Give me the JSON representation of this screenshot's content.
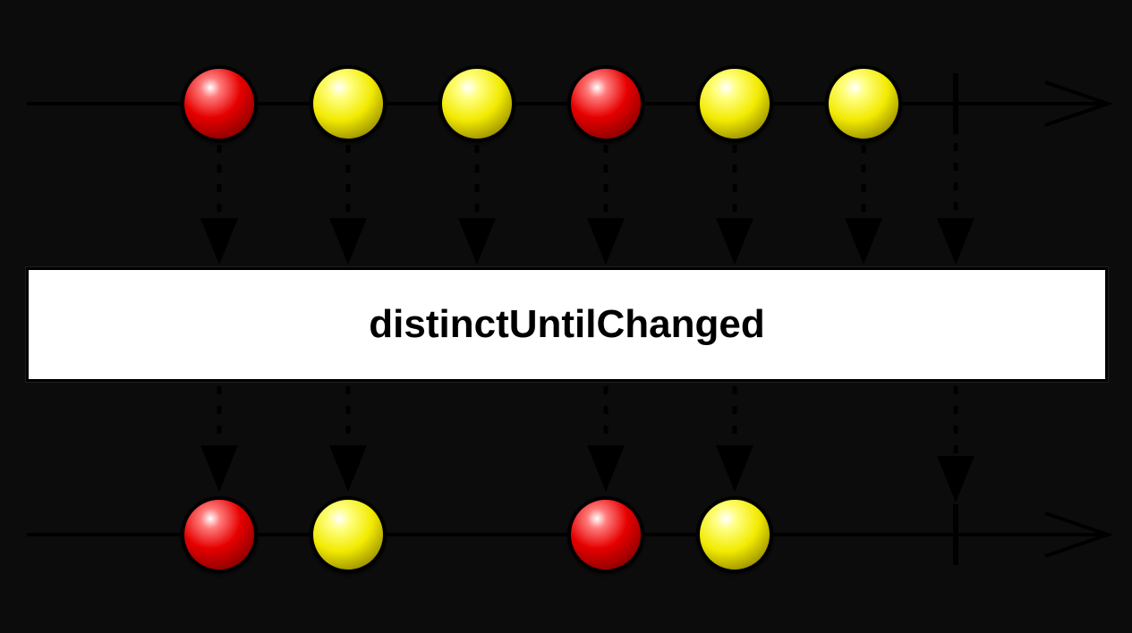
{
  "operator": {
    "label": "distinctUntilChanged"
  },
  "colors": {
    "background": "#0c0c0c",
    "line": "#000000",
    "red_marble": "#e00000",
    "yellow_marble": "#f0e800",
    "box": "#ffffff"
  },
  "input_stream": {
    "marbles": [
      "red",
      "yellow",
      "yellow",
      "red",
      "yellow",
      "yellow"
    ],
    "completes": true
  },
  "output_stream": {
    "marbles": [
      {
        "color": "red",
        "source_index": 0
      },
      {
        "color": "yellow",
        "source_index": 1
      },
      {
        "color": "red",
        "source_index": 3
      },
      {
        "color": "yellow",
        "source_index": 4
      }
    ],
    "completes": true
  }
}
